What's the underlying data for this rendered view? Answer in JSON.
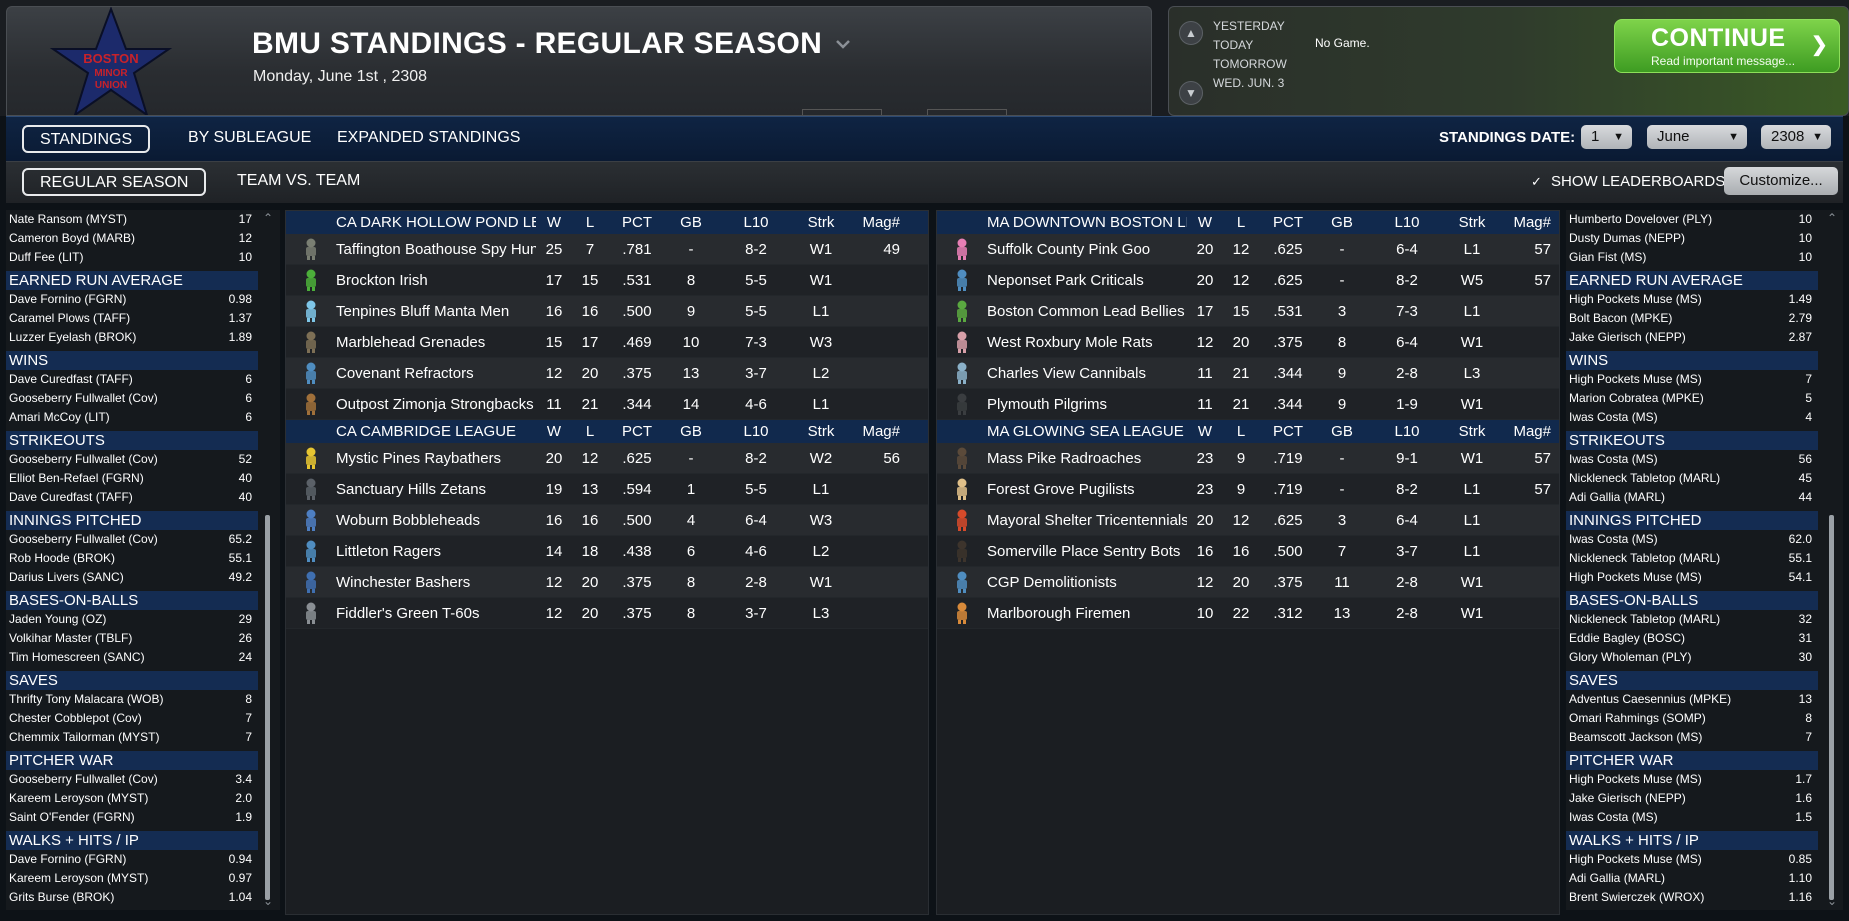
{
  "header": {
    "title": "BMU STANDINGS - REGULAR SEASON",
    "date": "Monday, June 1st , 2308",
    "logo_lines": [
      "BOSTON",
      "MINOR",
      "UNION"
    ],
    "days": [
      "YESTERDAY",
      "TODAY",
      "TOMORROW",
      "WED. JUN. 3"
    ],
    "no_game": "No Game.",
    "continue_label": "CONTINUE",
    "continue_sub": "Read important message..."
  },
  "tabs1": [
    "STANDINGS",
    "BY SUBLEAGUE",
    "EXPANDED STANDINGS"
  ],
  "tabs2": [
    "REGULAR SEASON",
    "TEAM VS. TEAM"
  ],
  "standings_date": {
    "label": "STANDINGS DATE:",
    "day": "1",
    "month": "June",
    "year": "2308"
  },
  "show_leaderboards": "SHOW LEADERBOARDS",
  "customize": "Customize...",
  "columns": [
    "W",
    "L",
    "PCT",
    "GB",
    "L10",
    "Strk",
    "Mag#"
  ],
  "divisions_left": [
    {
      "name": "CA DARK HOLLOW POND LEAGUE",
      "teams": [
        {
          "name": "Taffington Boathouse Spy Hunters",
          "w": "25",
          "l": "7",
          "pct": ".781",
          "gb": "-",
          "l10": "8-2",
          "strk": "W1",
          "mag": "49",
          "color": "#7a7f73"
        },
        {
          "name": "Brockton Irish",
          "w": "17",
          "l": "15",
          "pct": ".531",
          "gb": "8",
          "l10": "5-5",
          "strk": "W1",
          "mag": "",
          "color": "#4caf3a"
        },
        {
          "name": "Tenpines Bluff Manta Men",
          "w": "16",
          "l": "16",
          "pct": ".500",
          "gb": "9",
          "l10": "5-5",
          "strk": "L1",
          "mag": "",
          "color": "#7ec6e8"
        },
        {
          "name": "Marblehead Grenades",
          "w": "15",
          "l": "17",
          "pct": ".469",
          "gb": "10",
          "l10": "7-3",
          "strk": "W3",
          "mag": "",
          "color": "#7d6f55"
        },
        {
          "name": "Covenant Refractors",
          "w": "12",
          "l": "20",
          "pct": ".375",
          "gb": "13",
          "l10": "3-7",
          "strk": "L2",
          "mag": "",
          "color": "#4f8dc0"
        },
        {
          "name": "Outpost Zimonja Strongbacks",
          "w": "11",
          "l": "21",
          "pct": ".344",
          "gb": "14",
          "l10": "4-6",
          "strk": "L1",
          "mag": "",
          "color": "#a0703a"
        }
      ]
    },
    {
      "name": "CA CAMBRIDGE LEAGUE",
      "teams": [
        {
          "name": "Mystic Pines Raybathers",
          "w": "20",
          "l": "12",
          "pct": ".625",
          "gb": "-",
          "l10": "8-2",
          "strk": "W2",
          "mag": "56",
          "color": "#e6c531"
        },
        {
          "name": "Sanctuary Hills Zetans",
          "w": "19",
          "l": "13",
          "pct": ".594",
          "gb": "1",
          "l10": "5-5",
          "strk": "L1",
          "mag": "",
          "color": "#5b6168"
        },
        {
          "name": "Woburn Bobbleheads",
          "w": "16",
          "l": "16",
          "pct": ".500",
          "gb": "4",
          "l10": "6-4",
          "strk": "W3",
          "mag": "",
          "color": "#4d7ec2"
        },
        {
          "name": "Littleton Ragers",
          "w": "14",
          "l": "18",
          "pct": ".438",
          "gb": "6",
          "l10": "4-6",
          "strk": "L2",
          "mag": "",
          "color": "#4f8dc0"
        },
        {
          "name": "Winchester Bashers",
          "w": "12",
          "l": "20",
          "pct": ".375",
          "gb": "8",
          "l10": "2-8",
          "strk": "W1",
          "mag": "",
          "color": "#3f6fb0"
        },
        {
          "name": "Fiddler's Green T-60s",
          "w": "12",
          "l": "20",
          "pct": ".375",
          "gb": "8",
          "l10": "3-7",
          "strk": "L3",
          "mag": "",
          "color": "#8a8f94"
        }
      ]
    }
  ],
  "divisions_right": [
    {
      "name": "MA DOWNTOWN BOSTON LEAGUE",
      "teams": [
        {
          "name": "Suffolk County Pink Goo",
          "w": "20",
          "l": "12",
          "pct": ".625",
          "gb": "-",
          "l10": "6-4",
          "strk": "L1",
          "mag": "57",
          "color": "#e77fb5"
        },
        {
          "name": "Neponset Park Criticals",
          "w": "20",
          "l": "12",
          "pct": ".625",
          "gb": "-",
          "l10": "8-2",
          "strk": "W5",
          "mag": "57",
          "color": "#4f8dc0"
        },
        {
          "name": "Boston Common Lead Bellies",
          "w": "17",
          "l": "15",
          "pct": ".531",
          "gb": "3",
          "l10": "7-3",
          "strk": "L1",
          "mag": "",
          "color": "#5aa940"
        },
        {
          "name": "West Roxbury Mole Rats",
          "w": "12",
          "l": "20",
          "pct": ".375",
          "gb": "8",
          "l10": "6-4",
          "strk": "W1",
          "mag": "",
          "color": "#d79fa8"
        },
        {
          "name": "Charles View Cannibals",
          "w": "11",
          "l": "21",
          "pct": ".344",
          "gb": "9",
          "l10": "2-8",
          "strk": "L3",
          "mag": "",
          "color": "#8ab0c8"
        },
        {
          "name": "Plymouth Pilgrims",
          "w": "11",
          "l": "21",
          "pct": ".344",
          "gb": "9",
          "l10": "1-9",
          "strk": "W1",
          "mag": "",
          "color": "#3a3d40"
        }
      ]
    },
    {
      "name": "MA GLOWING SEA LEAGUE",
      "teams": [
        {
          "name": "Mass Pike Radroaches",
          "w": "23",
          "l": "9",
          "pct": ".719",
          "gb": "-",
          "l10": "9-1",
          "strk": "W1",
          "mag": "57",
          "color": "#5b4a3a"
        },
        {
          "name": "Forest Grove Pugilists",
          "w": "23",
          "l": "9",
          "pct": ".719",
          "gb": "-",
          "l10": "8-2",
          "strk": "L1",
          "mag": "57",
          "color": "#e0c089"
        },
        {
          "name": "Mayoral Shelter Tricentennials",
          "w": "20",
          "l": "12",
          "pct": ".625",
          "gb": "3",
          "l10": "6-4",
          "strk": "L1",
          "mag": "",
          "color": "#d64a2a"
        },
        {
          "name": "Somerville Place Sentry Bots",
          "w": "16",
          "l": "16",
          "pct": ".500",
          "gb": "7",
          "l10": "3-7",
          "strk": "L1",
          "mag": "",
          "color": "#3d342c"
        },
        {
          "name": "CGP Demolitionists",
          "w": "12",
          "l": "20",
          "pct": ".375",
          "gb": "11",
          "l10": "2-8",
          "strk": "W1",
          "mag": "",
          "color": "#4f8dc0"
        },
        {
          "name": "Marlborough Firemen",
          "w": "10",
          "l": "22",
          "pct": ".312",
          "gb": "13",
          "l10": "2-8",
          "strk": "W1",
          "mag": "",
          "color": "#d88a3a"
        }
      ]
    }
  ],
  "left_leaders": {
    "top_rows": [
      {
        "name": "Nate Ransom (MYST)",
        "val": "17"
      },
      {
        "name": "Cameron Boyd (MARB)",
        "val": "12"
      },
      {
        "name": "Duff Fee (LIT)",
        "val": "10"
      }
    ],
    "categories": [
      {
        "title": "EARNED RUN AVERAGE",
        "rows": [
          {
            "name": "Dave Fornino (FGRN)",
            "val": "0.98"
          },
          {
            "name": "Caramel Plows (TAFF)",
            "val": "1.37"
          },
          {
            "name": "Luzzer Eyelash (BROK)",
            "val": "1.89"
          }
        ]
      },
      {
        "title": "WINS",
        "rows": [
          {
            "name": "Dave Curedfast (TAFF)",
            "val": "6"
          },
          {
            "name": "Gooseberry Fullwallet (Cov)",
            "val": "6"
          },
          {
            "name": "Amari McCoy (LIT)",
            "val": "6"
          }
        ]
      },
      {
        "title": "STRIKEOUTS",
        "rows": [
          {
            "name": "Gooseberry Fullwallet (Cov)",
            "val": "52"
          },
          {
            "name": "Elliot Ben-Refael (FGRN)",
            "val": "40"
          },
          {
            "name": "Dave Curedfast (TAFF)",
            "val": "40"
          }
        ]
      },
      {
        "title": "INNINGS PITCHED",
        "rows": [
          {
            "name": "Gooseberry Fullwallet (Cov)",
            "val": "65.2"
          },
          {
            "name": "Rob Hoode (BROK)",
            "val": "55.1"
          },
          {
            "name": "Darius Livers (SANC)",
            "val": "49.2"
          }
        ]
      },
      {
        "title": "BASES-ON-BALLS",
        "rows": [
          {
            "name": "Jaden Young (OZ)",
            "val": "29"
          },
          {
            "name": "Volkihar Master (TBLF)",
            "val": "26"
          },
          {
            "name": "Tim Homescreen (SANC)",
            "val": "24"
          }
        ]
      },
      {
        "title": "SAVES",
        "rows": [
          {
            "name": "Thrifty Tony Malacara (WOB)",
            "val": "8"
          },
          {
            "name": "Chester Cobblepot (Cov)",
            "val": "7"
          },
          {
            "name": "Chemmix Tailorman (MYST)",
            "val": "7"
          }
        ]
      },
      {
        "title": "PITCHER WAR",
        "rows": [
          {
            "name": "Gooseberry Fullwallet (Cov)",
            "val": "3.4"
          },
          {
            "name": "Kareem Leroyson (MYST)",
            "val": "2.0"
          },
          {
            "name": "Saint O'Fender (FGRN)",
            "val": "1.9"
          }
        ]
      },
      {
        "title": "WALKS + HITS / IP",
        "rows": [
          {
            "name": "Dave Fornino (FGRN)",
            "val": "0.94"
          },
          {
            "name": "Kareem Leroyson (MYST)",
            "val": "0.97"
          },
          {
            "name": "Grits Burse (BROK)",
            "val": "1.04"
          }
        ]
      }
    ]
  },
  "right_leaders": {
    "top_rows": [
      {
        "name": "Humberto Dovelover (PLY)",
        "val": "10"
      },
      {
        "name": "Dusty Dumas (NEPP)",
        "val": "10"
      },
      {
        "name": "Gian Fist (MS)",
        "val": "10"
      }
    ],
    "categories": [
      {
        "title": "EARNED RUN AVERAGE",
        "rows": [
          {
            "name": "High Pockets Muse (MS)",
            "val": "1.49"
          },
          {
            "name": "Bolt Bacon (MPKE)",
            "val": "2.79"
          },
          {
            "name": "Jake Gierisch (NEPP)",
            "val": "2.87"
          }
        ]
      },
      {
        "title": "WINS",
        "rows": [
          {
            "name": "High Pockets Muse (MS)",
            "val": "7"
          },
          {
            "name": "Marion Cobratea (MPKE)",
            "val": "5"
          },
          {
            "name": "Iwas Costa (MS)",
            "val": "4"
          }
        ]
      },
      {
        "title": "STRIKEOUTS",
        "rows": [
          {
            "name": "Iwas Costa (MS)",
            "val": "56"
          },
          {
            "name": "Nickleneck Tabletop (MARL)",
            "val": "45"
          },
          {
            "name": "Adi Gallia (MARL)",
            "val": "44"
          }
        ]
      },
      {
        "title": "INNINGS PITCHED",
        "rows": [
          {
            "name": "Iwas Costa (MS)",
            "val": "62.0"
          },
          {
            "name": "Nickleneck Tabletop (MARL)",
            "val": "55.1"
          },
          {
            "name": "High Pockets Muse (MS)",
            "val": "54.1"
          }
        ]
      },
      {
        "title": "BASES-ON-BALLS",
        "rows": [
          {
            "name": "Nickleneck Tabletop (MARL)",
            "val": "32"
          },
          {
            "name": "Eddie Bagley (BOSC)",
            "val": "31"
          },
          {
            "name": "Glory Wholeman (PLY)",
            "val": "30"
          }
        ]
      },
      {
        "title": "SAVES",
        "rows": [
          {
            "name": "Adventus Caesennius (MPKE)",
            "val": "13"
          },
          {
            "name": "Omari Rahmings (SOMP)",
            "val": "8"
          },
          {
            "name": "Beamscott Jackson (MS)",
            "val": "7"
          }
        ]
      },
      {
        "title": "PITCHER WAR",
        "rows": [
          {
            "name": "High Pockets Muse (MS)",
            "val": "1.7"
          },
          {
            "name": "Jake Gierisch (NEPP)",
            "val": "1.6"
          },
          {
            "name": "Iwas Costa (MS)",
            "val": "1.5"
          }
        ]
      },
      {
        "title": "WALKS + HITS / IP",
        "rows": [
          {
            "name": "High Pockets Muse (MS)",
            "val": "0.85"
          },
          {
            "name": "Adi Gallia (MARL)",
            "val": "1.10"
          },
          {
            "name": "Brent Swierczek (WROX)",
            "val": "1.16"
          }
        ]
      }
    ]
  },
  "colors": {
    "accent_blue": "#11294d",
    "continue_green": "#3e9c22",
    "logo_star": "#1c2a6b",
    "logo_text": "#c8222a"
  }
}
